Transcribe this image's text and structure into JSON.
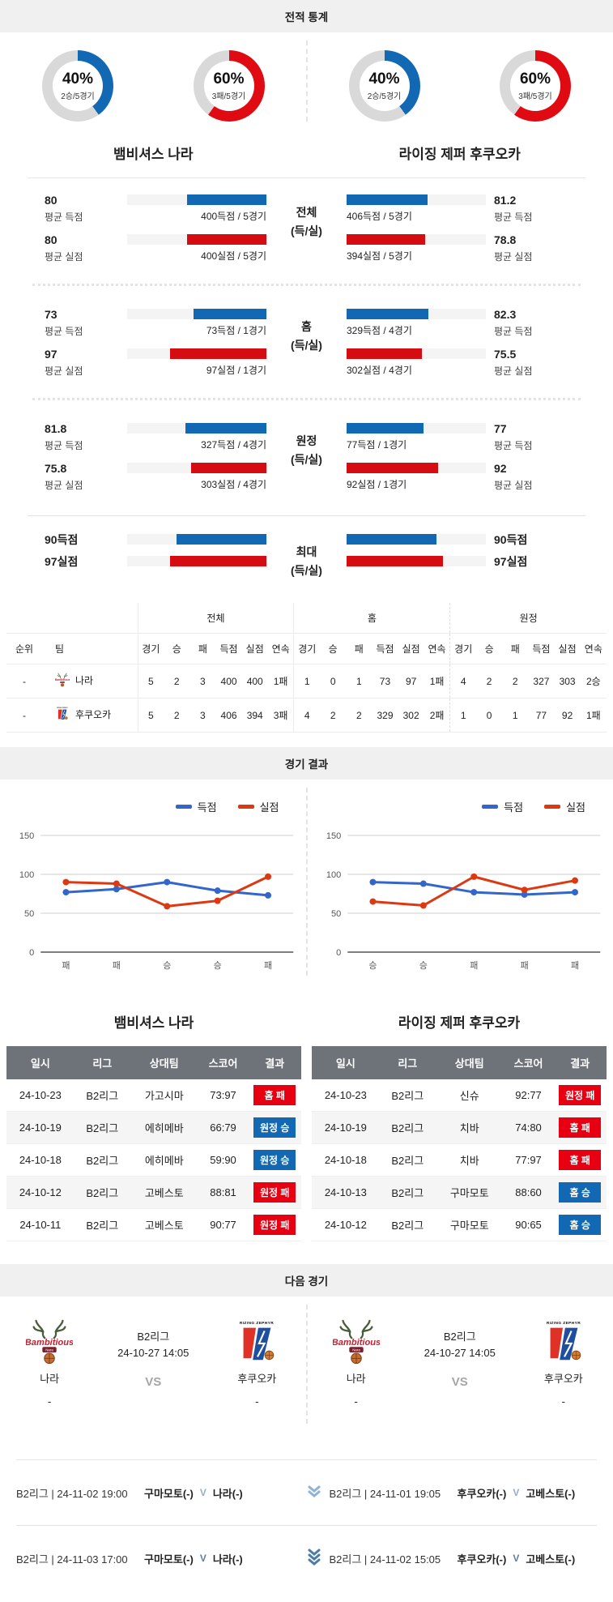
{
  "sections": {
    "stats": "전적 통계",
    "results": "경기 결과",
    "next": "다음 경기"
  },
  "colors": {
    "blue": "#1268b3",
    "red": "#d50c12",
    "badge_red": "#e60012",
    "chart_blue": "#3366cc",
    "chart_red": "#dc3912",
    "donut_gray": "#d9d9d9"
  },
  "summary": {
    "left": {
      "name": "뱀비셔스 나라",
      "donuts": [
        {
          "pct": "40%",
          "sub": "2승/5경기",
          "color": "#1268b3"
        },
        {
          "pct": "60%",
          "sub": "3패/5경기",
          "color": "#e00b12"
        }
      ]
    },
    "right": {
      "name": "라이징 제퍼 후쿠오카",
      "donuts": [
        {
          "pct": "40%",
          "sub": "2승/5경기",
          "color": "#1268b3"
        },
        {
          "pct": "60%",
          "sub": "3패/5경기",
          "color": "#e00b12"
        }
      ]
    }
  },
  "stat_groups": [
    {
      "label": "전체",
      "sublabel": "(득/실)",
      "rows": [
        {
          "kind": "score",
          "left_val": "80",
          "left_label": "평균 득점",
          "left_bar_text": "400득점 / 5경기",
          "left_avg": 80,
          "right_val": "81.2",
          "right_label": "평균 득점",
          "right_bar_text": "406득점 / 5경기",
          "right_avg": 81.2
        },
        {
          "kind": "concede",
          "left_val": "80",
          "left_label": "평균 실점",
          "left_bar_text": "400실점 / 5경기",
          "left_avg": 80,
          "right_val": "78.8",
          "right_label": "평균 실점",
          "right_bar_text": "394실점 / 5경기",
          "right_avg": 78.8
        }
      ]
    },
    {
      "label": "홈",
      "sublabel": "(득/실)",
      "rows": [
        {
          "kind": "score",
          "left_val": "73",
          "left_label": "평균 득점",
          "left_bar_text": "73득점 / 1경기",
          "left_avg": 73,
          "right_val": "82.3",
          "right_label": "평균 득점",
          "right_bar_text": "329득점 / 4경기",
          "right_avg": 82.3
        },
        {
          "kind": "concede",
          "left_val": "97",
          "left_label": "평균 실점",
          "left_bar_text": "97실점 / 1경기",
          "left_avg": 97,
          "right_val": "75.5",
          "right_label": "평균 실점",
          "right_bar_text": "302실점 / 4경기",
          "right_avg": 75.5
        }
      ]
    },
    {
      "label": "원정",
      "sublabel": "(득/실)",
      "rows": [
        {
          "kind": "score",
          "left_val": "81.8",
          "left_label": "평균 득점",
          "left_bar_text": "327득점 / 4경기",
          "left_avg": 81.8,
          "right_val": "77",
          "right_label": "평균 득점",
          "right_bar_text": "77득점 / 1경기",
          "right_avg": 77
        },
        {
          "kind": "concede",
          "left_val": "75.8",
          "left_label": "평균 실점",
          "left_bar_text": "303실점 / 4경기",
          "left_avg": 75.8,
          "right_val": "92",
          "right_label": "평균 실점",
          "right_bar_text": "92실점 / 1경기",
          "right_avg": 92
        }
      ]
    },
    {
      "label": "최대",
      "sublabel": "(득/실)",
      "rows": [
        {
          "kind": "score",
          "left_val": "90득점",
          "left_label": "",
          "left_bar_text": "",
          "left_avg": 90,
          "right_val": "90득점",
          "right_label": "",
          "right_bar_text": "",
          "right_avg": 90
        },
        {
          "kind": "concede",
          "left_val": "97실점",
          "left_label": "",
          "left_bar_text": "",
          "left_avg": 97,
          "right_val": "97실점",
          "right_label": "",
          "right_bar_text": "",
          "right_avg": 97
        }
      ]
    }
  ],
  "standings": {
    "lead_headers": [
      "순위",
      "팀"
    ],
    "group_headers": [
      "전체",
      "홈",
      "원정"
    ],
    "sub_headers": [
      "경기",
      "승",
      "패",
      "득점",
      "실점",
      "연속"
    ],
    "rows": [
      {
        "rank": "-",
        "team": "나라",
        "logo": "nara",
        "overall": [
          "5",
          "2",
          "3",
          "400",
          "400",
          "1패"
        ],
        "home": [
          "1",
          "0",
          "1",
          "73",
          "97",
          "1패"
        ],
        "away": [
          "4",
          "2",
          "2",
          "327",
          "303",
          "2승"
        ]
      },
      {
        "rank": "-",
        "team": "후쿠오카",
        "logo": "fukuoka",
        "overall": [
          "5",
          "2",
          "3",
          "406",
          "394",
          "3패"
        ],
        "home": [
          "4",
          "2",
          "2",
          "329",
          "302",
          "2패"
        ],
        "away": [
          "1",
          "0",
          "1",
          "77",
          "92",
          "1패"
        ]
      }
    ]
  },
  "chart_data": [
    {
      "type": "line",
      "title": "뱀비셔스 나라",
      "categories": [
        "패",
        "패",
        "승",
        "승",
        "패"
      ],
      "series": [
        {
          "name": "득점",
          "color": "#3366cc",
          "values": [
            77,
            81,
            90,
            79,
            73
          ]
        },
        {
          "name": "실점",
          "color": "#dc3912",
          "values": [
            90,
            88,
            59,
            66,
            97
          ]
        }
      ],
      "ylim": [
        0,
        150
      ],
      "yticks": [
        0,
        50,
        100,
        150
      ],
      "grid": true,
      "legend_position": "top-right"
    },
    {
      "type": "line",
      "title": "라이징 제퍼 후쿠오카",
      "categories": [
        "승",
        "승",
        "패",
        "패",
        "패"
      ],
      "series": [
        {
          "name": "득점",
          "color": "#3366cc",
          "values": [
            90,
            88,
            77,
            74,
            77
          ]
        },
        {
          "name": "실점",
          "color": "#dc3912",
          "values": [
            65,
            60,
            97,
            80,
            92
          ]
        }
      ],
      "ylim": [
        0,
        150
      ],
      "yticks": [
        0,
        50,
        100,
        150
      ],
      "grid": true,
      "legend_position": "top-right"
    }
  ],
  "results": [
    {
      "title": "뱀비셔스 나라",
      "headers": [
        "일시",
        "리그",
        "상대팀",
        "스코어",
        "결과"
      ],
      "rows": [
        {
          "date": "24-10-23",
          "league": "B2리그",
          "opponent": "가고시마",
          "score": "73:97",
          "result": "홈 패",
          "result_type": "loss"
        },
        {
          "date": "24-10-19",
          "league": "B2리그",
          "opponent": "에히메바",
          "score": "66:79",
          "result": "원정 승",
          "result_type": "win"
        },
        {
          "date": "24-10-18",
          "league": "B2리그",
          "opponent": "에히메바",
          "score": "59:90",
          "result": "원정 승",
          "result_type": "win"
        },
        {
          "date": "24-10-12",
          "league": "B2리그",
          "opponent": "고베스토",
          "score": "88:81",
          "result": "원정 패",
          "result_type": "loss"
        },
        {
          "date": "24-10-11",
          "league": "B2리그",
          "opponent": "고베스토",
          "score": "90:77",
          "result": "원정 패",
          "result_type": "loss"
        }
      ]
    },
    {
      "title": "라이징 제퍼 후쿠오카",
      "headers": [
        "일시",
        "리그",
        "상대팀",
        "스코어",
        "결과"
      ],
      "rows": [
        {
          "date": "24-10-23",
          "league": "B2리그",
          "opponent": "신슈",
          "score": "92:77",
          "result": "원정 패",
          "result_type": "loss"
        },
        {
          "date": "24-10-19",
          "league": "B2리그",
          "opponent": "치바",
          "score": "74:80",
          "result": "홈 패",
          "result_type": "loss"
        },
        {
          "date": "24-10-18",
          "league": "B2리그",
          "opponent": "치바",
          "score": "77:97",
          "result": "홈 패",
          "result_type": "loss"
        },
        {
          "date": "24-10-13",
          "league": "B2리그",
          "opponent": "구마모토",
          "score": "88:60",
          "result": "홈 승",
          "result_type": "win"
        },
        {
          "date": "24-10-12",
          "league": "B2리그",
          "opponent": "구마모토",
          "score": "90:65",
          "result": "홈 승",
          "result_type": "win"
        }
      ]
    }
  ],
  "next_match": {
    "league": "B2리그",
    "datetime": "24-10-27 14:05",
    "vs": "VS",
    "home": {
      "name": "나라",
      "score": "-",
      "logo": "nara"
    },
    "away": {
      "name": "후쿠오카",
      "score": "-",
      "logo": "fukuoka"
    }
  },
  "fixtures": [
    {
      "left": {
        "meta": "B2리그 | 24-11-02 19:00",
        "home": "구마모토(-)",
        "sep": "V",
        "away": "나라(-)"
      },
      "right": {
        "meta": "B2리그 | 24-11-01 19:05",
        "home": "후쿠오카(-)",
        "sep": "V",
        "away": "고베스토(-)"
      }
    },
    {
      "left": {
        "meta": "B2리그 | 24-11-03 17:00",
        "home": "구마모토(-)",
        "sep": "V",
        "away": "나라(-)"
      },
      "right": {
        "meta": "B2리그 | 24-11-02 15:05",
        "home": "후쿠오카(-)",
        "sep": "V",
        "away": "고베스토(-)"
      }
    }
  ]
}
